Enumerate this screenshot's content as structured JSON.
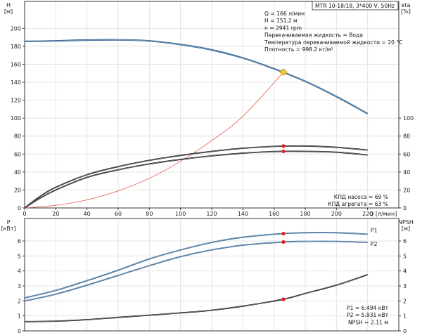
{
  "chart_data": [
    {
      "type": "line",
      "title": "",
      "xlabel": "Q [л/мин]",
      "xlim": [
        0,
        240
      ],
      "x_ticks": [
        0,
        20,
        40,
        60,
        80,
        100,
        120,
        140,
        160,
        180,
        200,
        220
      ],
      "y_left": {
        "label_line1": "H",
        "label_line2": "[м]",
        "ylim": [
          0,
          230
        ],
        "ticks": [
          0,
          20,
          40,
          60,
          80,
          100,
          120,
          140,
          160,
          180,
          200
        ]
      },
      "y_right": {
        "label_line1": "eta",
        "label_line2": "[%]",
        "ylim": [
          0,
          230
        ],
        "ticks": [
          0,
          20,
          40,
          60,
          80,
          100
        ]
      },
      "grid": true,
      "header": "MTR 10-18/18, 3*400 V, 50Hz",
      "info_lines": [
        "Q = 166 л/мин",
        "H = 151.2 м",
        "n = 2941 rpm",
        "Перекачиваемая жидкость = Вода",
        "Температура перекачиваемой жидкости = 20 °C",
        "Плотность = 998.2 кг/м³"
      ],
      "bottom_info": [
        "КПД насоса = 69 %",
        "КПД агрегата = 63 %"
      ],
      "duty_point": {
        "x": 166,
        "y": 151.2
      },
      "series": [
        {
          "role": "head",
          "color": "#2a5c8c",
          "x": [
            0,
            20,
            40,
            60,
            80,
            100,
            120,
            140,
            160,
            180,
            200,
            220
          ],
          "y": [
            185.5,
            186,
            187,
            187.2,
            186,
            182,
            176,
            167,
            155,
            141,
            124,
            105
          ]
        },
        {
          "role": "system-curve",
          "color": "#e65a4a",
          "x": [
            0,
            20,
            40,
            60,
            80,
            100,
            120,
            140,
            166
          ],
          "y": [
            0,
            3,
            9,
            19,
            33,
            52,
            75,
            102,
            151.2
          ]
        },
        {
          "role": "pump-efficiency",
          "color": "#111111",
          "x": [
            0,
            10,
            20,
            40,
            60,
            80,
            100,
            120,
            140,
            160,
            180,
            200,
            220
          ],
          "y": [
            0,
            13,
            23,
            37,
            46,
            53,
            58.5,
            63,
            66.5,
            68.5,
            69,
            67.5,
            64.5
          ]
        },
        {
          "role": "unit-efficiency",
          "color": "#111111",
          "x": [
            0,
            10,
            20,
            40,
            60,
            80,
            100,
            120,
            140,
            160,
            180,
            200,
            220
          ],
          "y": [
            0,
            11,
            20,
            34,
            42.5,
            49,
            54,
            58,
            61,
            62.8,
            63,
            62,
            59
          ]
        }
      ],
      "markers": [
        {
          "x": 166,
          "y": 69,
          "color": "#e02020"
        },
        {
          "x": 166,
          "y": 63,
          "color": "#e02020"
        }
      ]
    },
    {
      "type": "line",
      "title": "",
      "xlim": [
        0,
        240
      ],
      "y_left": {
        "label_line1": "P",
        "label_line2": "[кВт]",
        "ylim": [
          0,
          7.5
        ],
        "ticks": [
          0,
          1,
          2,
          3,
          4,
          5,
          6
        ]
      },
      "y_right": {
        "label_line1": "NPSH",
        "label_line2": "[м]",
        "ylim": [
          0,
          7.5
        ],
        "ticks": [
          0,
          1,
          2,
          3,
          4,
          5,
          6
        ]
      },
      "grid": true,
      "bottom_info": [
        "P1 = 6.494 кВт",
        "P2 = 5.931 кВт",
        "NPSH = 2.11 м"
      ],
      "series": [
        {
          "name": "P1",
          "color": "#2a5c8c",
          "x": [
            0,
            20,
            40,
            60,
            80,
            100,
            120,
            140,
            166,
            180,
            200,
            220
          ],
          "y": [
            2.2,
            2.7,
            3.35,
            4.05,
            4.8,
            5.4,
            5.9,
            6.25,
            6.494,
            6.55,
            6.55,
            6.45
          ]
        },
        {
          "name": "P2",
          "color": "#2a5c8c",
          "x": [
            0,
            20,
            40,
            60,
            80,
            100,
            120,
            140,
            166,
            180,
            200,
            220
          ],
          "y": [
            2.0,
            2.45,
            3.05,
            3.7,
            4.35,
            4.95,
            5.4,
            5.72,
            5.931,
            5.97,
            5.97,
            5.9
          ]
        },
        {
          "role": "NPSH",
          "color": "#111111",
          "x": [
            0,
            20,
            40,
            60,
            80,
            100,
            120,
            140,
            166,
            180,
            200,
            220
          ],
          "y": [
            0.62,
            0.65,
            0.75,
            0.9,
            1.05,
            1.2,
            1.38,
            1.65,
            2.11,
            2.5,
            3.05,
            3.75
          ]
        }
      ],
      "markers": [
        {
          "x": 166,
          "y": 6.494,
          "color": "#e02020"
        },
        {
          "x": 166,
          "y": 5.931,
          "color": "#e02020"
        },
        {
          "x": 166,
          "y": 2.11,
          "color": "#e02020"
        }
      ]
    }
  ]
}
